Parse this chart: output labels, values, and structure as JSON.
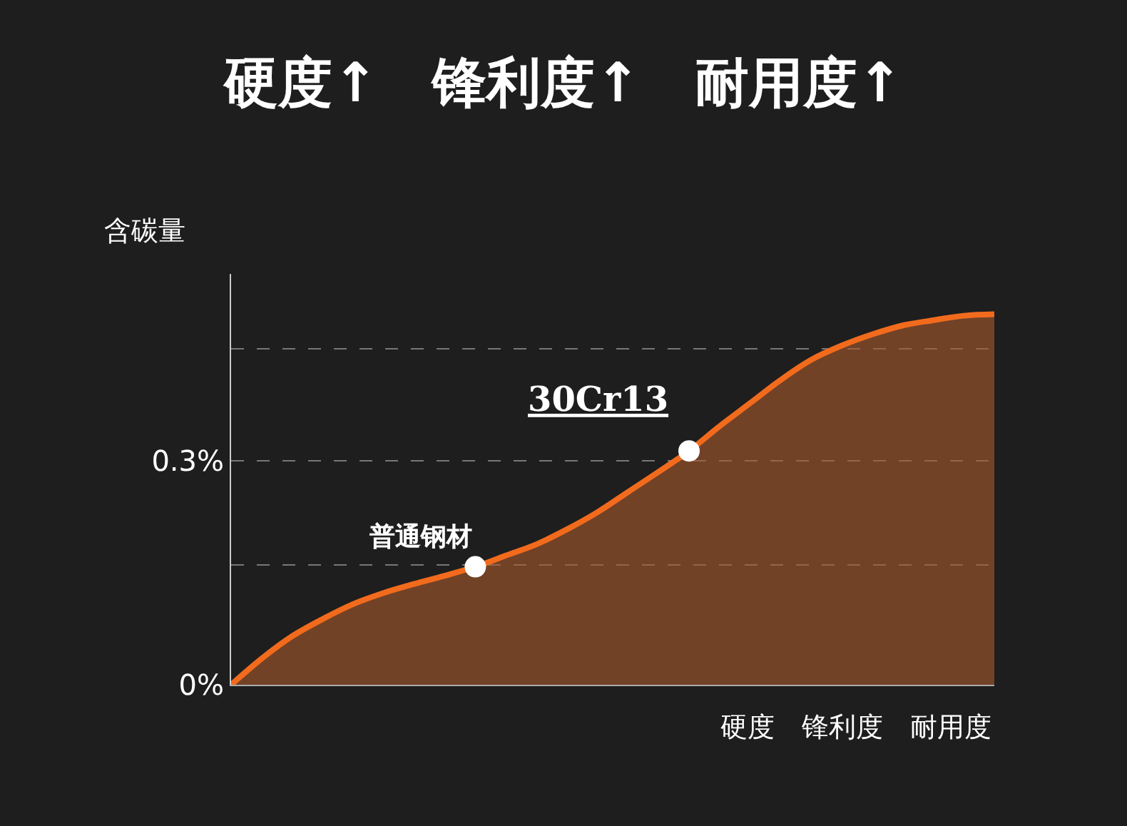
{
  "chart_data": {
    "type": "area",
    "title": "硬度↑　锋利度↑　耐用度↑",
    "ylabel": "含碳量",
    "xlabel": "硬度　锋利度　耐用度",
    "categories": [
      null,
      null,
      null,
      null,
      null,
      null,
      null,
      null,
      null,
      null,
      null,
      null,
      null,
      null,
      null,
      null,
      null,
      null,
      null,
      null,
      null,
      null,
      null,
      null,
      null,
      null
    ],
    "series": [
      {
        "color": "#f26b1d",
        "values": [
          0,
          0.035,
          0.065,
          0.088,
          0.108,
          0.123,
          0.135,
          0.146,
          0.158,
          0.173,
          0.188,
          0.208,
          0.231,
          0.258,
          0.285,
          0.313,
          0.346,
          0.377,
          0.408,
          0.435,
          0.454,
          0.469,
          0.481,
          0.488,
          0.494,
          0.496
        ]
      },
      {
        "type": "scatter",
        "color": "#ffffff",
        "marker": "circle",
        "values": [
          null,
          null,
          null,
          null,
          null,
          null,
          null,
          null,
          0.158,
          null,
          null,
          null,
          null,
          null,
          null,
          0.313,
          null,
          null,
          null,
          null,
          null,
          null,
          null,
          null,
          null,
          null
        ]
      }
    ],
    "annotations": [
      "普通钢材",
      "30Cr13"
    ],
    "ylim": [
      0,
      0.55
    ],
    "yticks": [
      {
        "value": 0,
        "label": "0%"
      },
      {
        "value": 0.16,
        "label": null
      },
      {
        "value": 0.3,
        "label": "0.3%"
      },
      {
        "value": 0.45,
        "label": null
      }
    ],
    "grid": "y",
    "line_style": "solid",
    "tick_labels": "y"
  }
}
